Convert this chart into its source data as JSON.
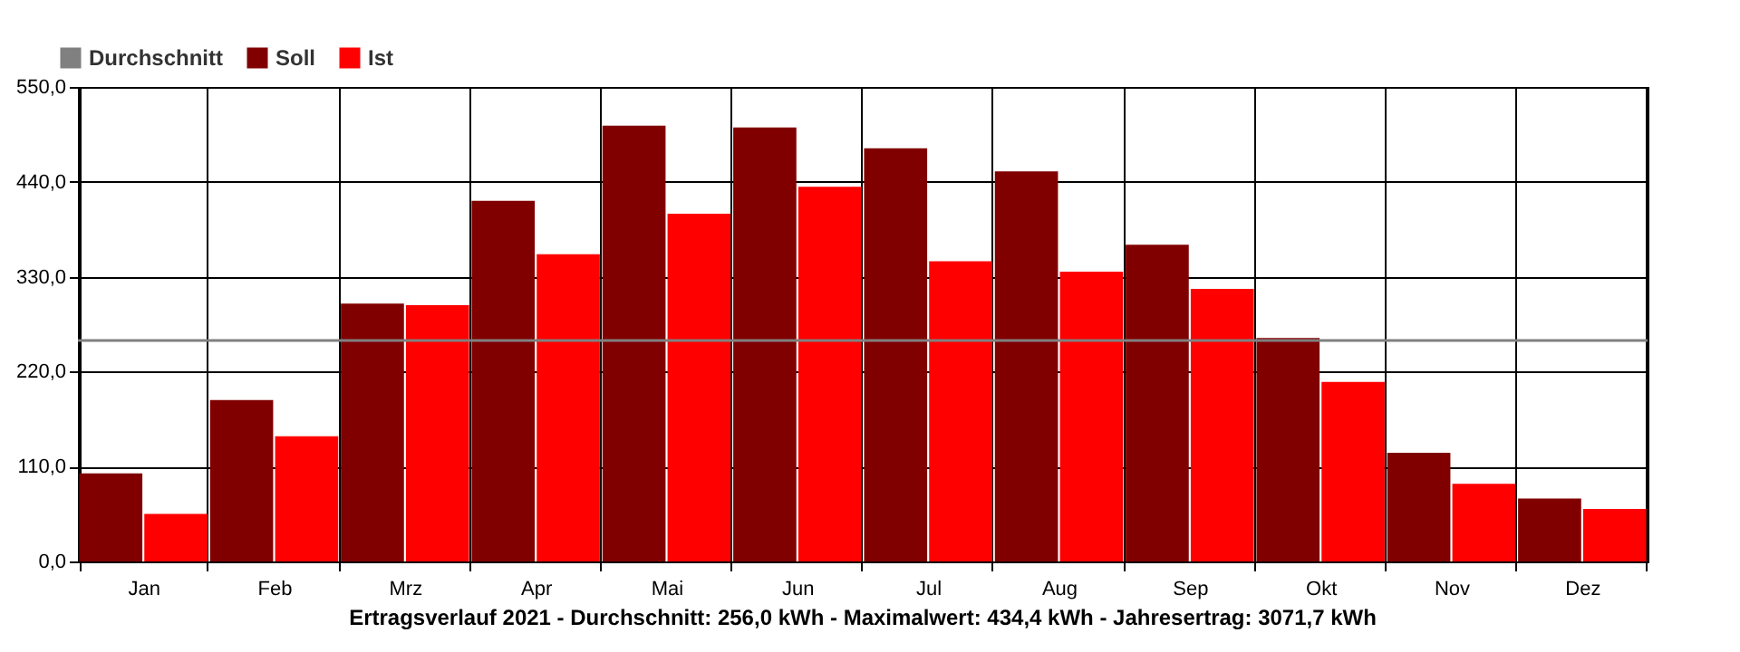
{
  "chart_data": {
    "type": "bar",
    "title": "Ertragsverlauf 2021 - Durchschnitt: 256,0 kWh - Maximalwert: 434,4 kWh - Jahresertrag: 3071,7 kWh",
    "categories": [
      "Jan",
      "Feb",
      "Mrz",
      "Apr",
      "Mai",
      "Jun",
      "Jul",
      "Aug",
      "Sep",
      "Okt",
      "Nov",
      "Dez"
    ],
    "series": [
      {
        "name": "Soll",
        "color": "#800000",
        "values": [
          102,
          187,
          299,
          418,
          505,
          503,
          479,
          452,
          367,
          259,
          126,
          73
        ]
      },
      {
        "name": "Ist",
        "color": "#ff0000",
        "values": [
          55,
          145,
          297,
          356,
          403,
          434.4,
          348,
          336,
          316,
          208,
          90,
          61
        ]
      }
    ],
    "ylim": [
      0,
      550
    ],
    "yticks": [
      {
        "value": 0,
        "label": "0,0"
      },
      {
        "value": 110,
        "label": "110,0"
      },
      {
        "value": 220,
        "label": "220,0"
      },
      {
        "value": 330,
        "label": "330,0"
      },
      {
        "value": 440,
        "label": "440,0"
      },
      {
        "value": 550,
        "label": "550,0"
      }
    ],
    "ref_lines": [
      {
        "axis": "y",
        "value": 256,
        "label": "Durchschnitt",
        "color": "#808080"
      }
    ],
    "grid": true,
    "legend": "top left"
  }
}
